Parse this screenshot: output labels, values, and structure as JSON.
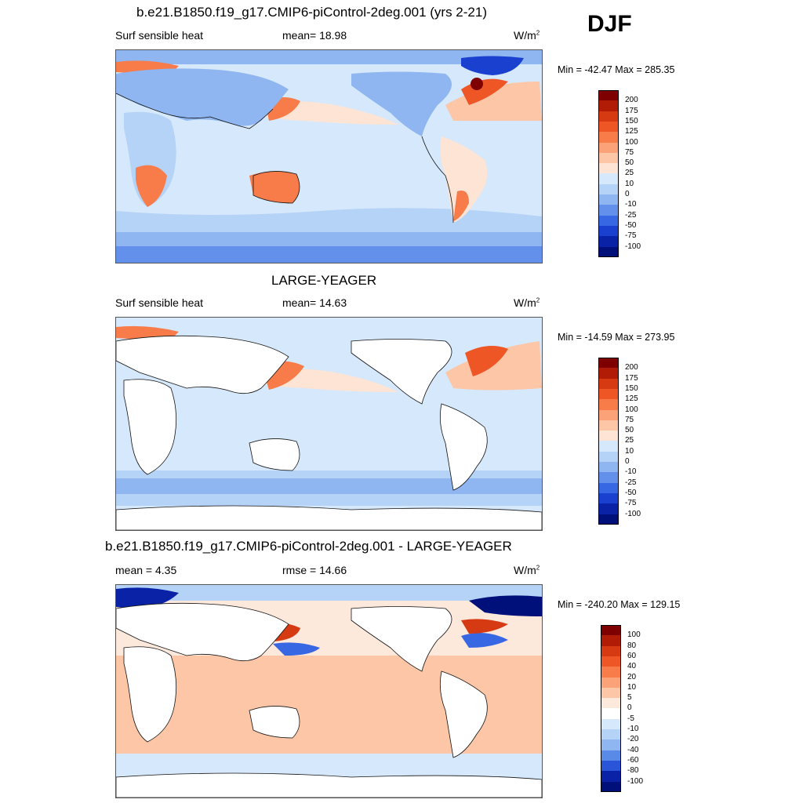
{
  "season": "DJF",
  "panels": [
    {
      "title": "b.e21.B1850.f19_g17.CMIP6-piControl-2deg.001 (yrs 2-21)",
      "left_label": "Surf sensible heat",
      "mid_label": "mean=  18.98",
      "units": "W/m",
      "units_sup": "2",
      "minmax": "Min = -42.47 Max = 285.35",
      "colorbar": {
        "levels": [
          "200",
          "175",
          "150",
          "125",
          "100",
          "75",
          "50",
          "25",
          "10",
          "0",
          "-10",
          "-25",
          "-50",
          "-75",
          "-100"
        ],
        "colors": [
          "#7f0000",
          "#b01c05",
          "#d63a12",
          "#ee5626",
          "#f77c4a",
          "#fba278",
          "#fdc6a6",
          "#fde4d4",
          "#d6e8fb",
          "#b4d3f7",
          "#8fb6f0",
          "#6290ea",
          "#3867e3",
          "#1a40cf",
          "#0a22a6",
          "#00107a"
        ]
      }
    },
    {
      "title": "LARGE-YEAGER",
      "left_label": "Surf sensible heat",
      "mid_label": "mean=  14.63",
      "units": "W/m",
      "units_sup": "2",
      "minmax": "Min = -14.59 Max = 273.95",
      "colorbar": {
        "levels": [
          "200",
          "175",
          "150",
          "125",
          "100",
          "75",
          "50",
          "25",
          "10",
          "0",
          "-10",
          "-25",
          "-50",
          "-75",
          "-100"
        ],
        "colors": [
          "#7f0000",
          "#b01c05",
          "#d63a12",
          "#ee5626",
          "#f77c4a",
          "#fba278",
          "#fdc6a6",
          "#fde4d4",
          "#d6e8fb",
          "#b4d3f7",
          "#8fb6f0",
          "#6290ea",
          "#3867e3",
          "#1a40cf",
          "#0a22a6",
          "#00107a"
        ]
      }
    },
    {
      "title": "b.e21.B1850.f19_g17.CMIP6-piControl-2deg.001 - LARGE-YEAGER",
      "left_label": "mean =   4.35",
      "mid_label": "rmse =  14.66",
      "units": "W/m",
      "units_sup": "2",
      "minmax": "Min = -240.20 Max = 129.15",
      "colorbar": {
        "levels": [
          "100",
          "80",
          "60",
          "40",
          "20",
          "10",
          "5",
          "0",
          "-5",
          "-10",
          "-20",
          "-40",
          "-60",
          "-80",
          "-100"
        ],
        "colors": [
          "#7f0000",
          "#b01c05",
          "#d63a12",
          "#ee5626",
          "#f77c4a",
          "#fba278",
          "#fdc6a6",
          "#fde8dc",
          "#ffffff",
          "#d6e8fb",
          "#b4d3f7",
          "#8fb6f0",
          "#5a8ae8",
          "#2a55d8",
          "#0a22a6",
          "#00107a"
        ]
      }
    }
  ]
}
